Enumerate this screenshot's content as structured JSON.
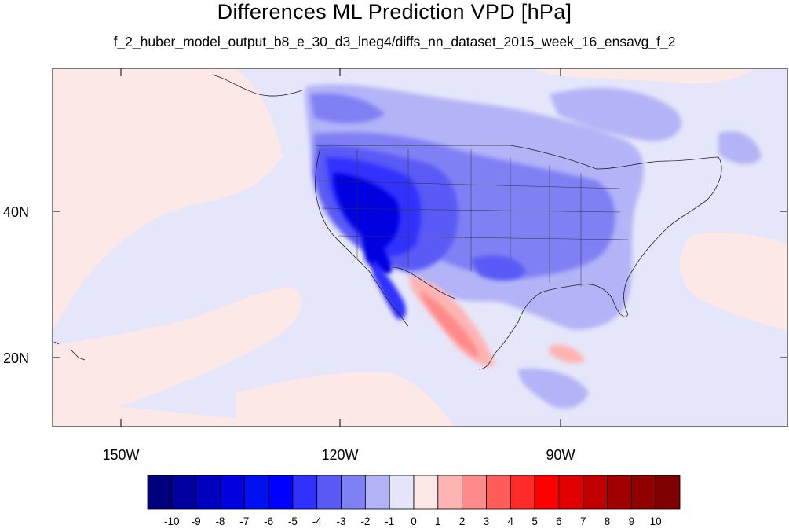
{
  "title": "Differences ML Prediction VPD [hPa]",
  "subtitle": "f_2_huber_model_output_b8_e_30_d3_lneg4/diffs_nn_dataset_2015_week_16_ensavg_f_2",
  "x_ticks": [
    "150W",
    "120W",
    "90W"
  ],
  "y_ticks": [
    "40N",
    "20N"
  ],
  "colorbar": {
    "labels": [
      "-10",
      "-9",
      "-8",
      "-7",
      "-6",
      "-5",
      "-4",
      "-3",
      "-2",
      "-1",
      "0",
      "1",
      "2",
      "3",
      "4",
      "5",
      "6",
      "7",
      "8",
      "9",
      "10"
    ],
    "colors": [
      "#00007f",
      "#0000a0",
      "#0000c0",
      "#0000e0",
      "#0010f0",
      "#0000ff",
      "#3030ff",
      "#5a5af6",
      "#8080f5",
      "#b3b3f7",
      "#e5e5fa",
      "#fde8e8",
      "#ffb4b4",
      "#ff8a8a",
      "#ff5c5c",
      "#ff2a2a",
      "#ff0000",
      "#e00000",
      "#c00000",
      "#a00000",
      "#900000",
      "#7f0000"
    ]
  }
}
